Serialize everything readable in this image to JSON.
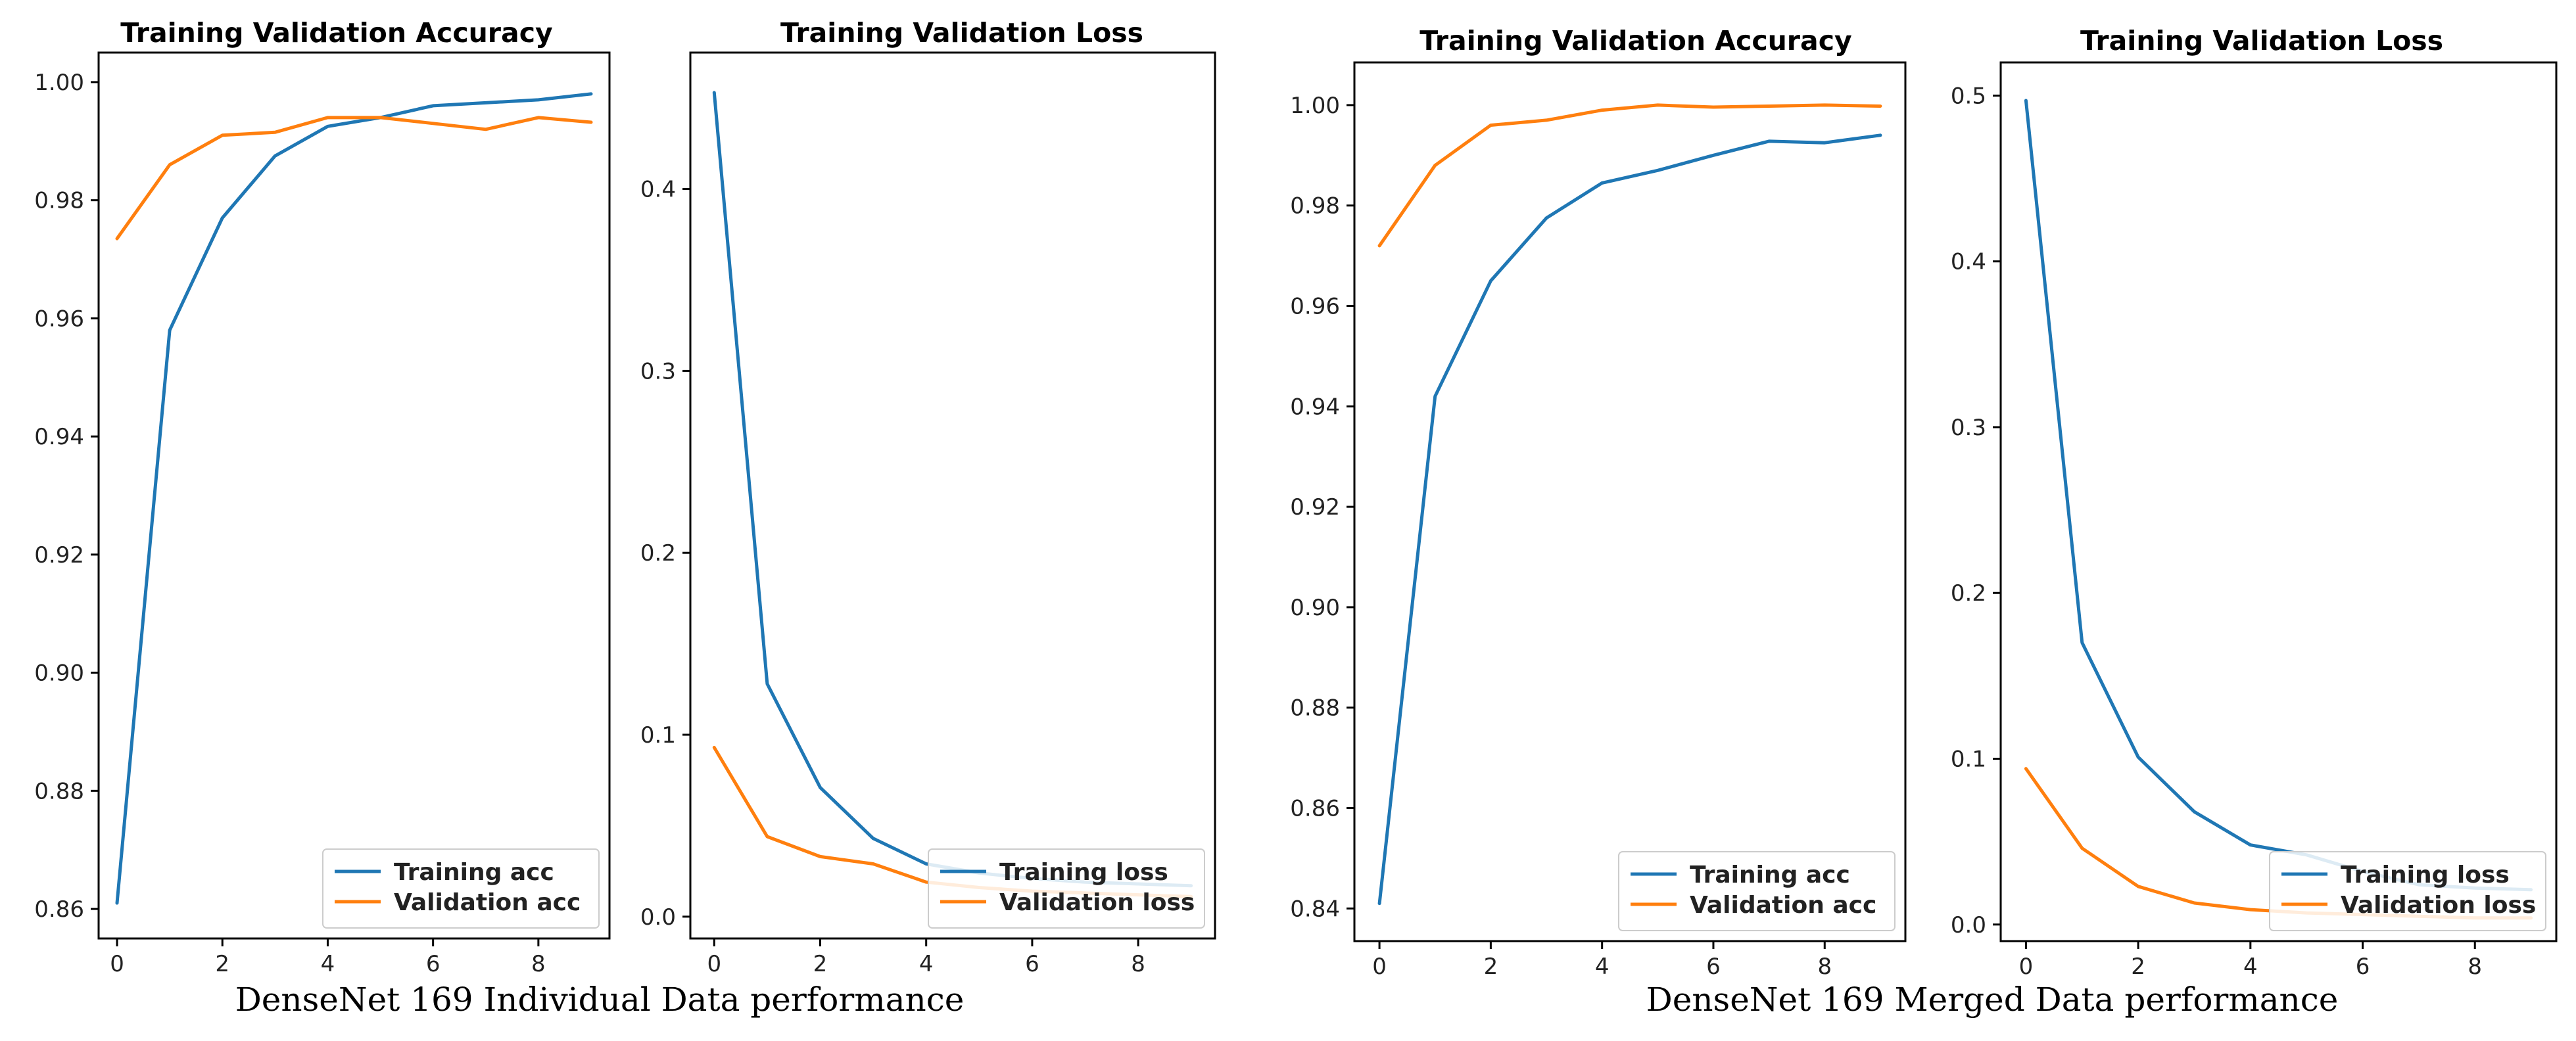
{
  "chart_data": [
    {
      "type": "line",
      "title": "Training Validation Accuracy",
      "x": [
        0,
        1,
        2,
        3,
        4,
        5,
        6,
        7,
        8,
        9
      ],
      "xticks": [
        "0",
        "2",
        "4",
        "6",
        "8"
      ],
      "xlim": [
        -0.35,
        9.35
      ],
      "ylim": [
        0.855,
        1.005
      ],
      "yticks": [
        "0.86",
        "0.88",
        "0.90",
        "0.92",
        "0.94",
        "0.96",
        "0.98",
        "1.00"
      ],
      "series": [
        {
          "name": "Training acc",
          "color": "#1f77b4",
          "values": [
            0.861,
            0.958,
            0.977,
            0.9875,
            0.9925,
            0.994,
            0.996,
            0.9965,
            0.997,
            0.998
          ]
        },
        {
          "name": "Validation acc",
          "color": "#ff7f0e",
          "values": [
            0.9735,
            0.986,
            0.991,
            0.9915,
            0.994,
            0.994,
            0.993,
            0.992,
            0.994,
            0.9932
          ]
        }
      ],
      "legend": "lower-right"
    },
    {
      "type": "line",
      "title": "Training Validation Loss",
      "x": [
        0,
        1,
        2,
        3,
        4,
        5,
        6,
        7,
        8,
        9
      ],
      "xticks": [
        "0",
        "2",
        "4",
        "6",
        "8"
      ],
      "xlim": [
        -0.45,
        9.45
      ],
      "ylim": [
        -0.012,
        0.475
      ],
      "yticks": [
        "0.0",
        "0.1",
        "0.2",
        "0.3",
        "0.4"
      ],
      "series": [
        {
          "name": "Training loss",
          "color": "#1f77b4",
          "values": [
            0.453,
            0.128,
            0.071,
            0.043,
            0.029,
            0.024,
            0.021,
            0.019,
            0.018,
            0.017
          ]
        },
        {
          "name": "Validation loss",
          "color": "#ff7f0e",
          "values": [
            0.093,
            0.044,
            0.033,
            0.029,
            0.019,
            0.016,
            0.014,
            0.013,
            0.012,
            0.011
          ]
        }
      ],
      "legend": "lower-right"
    },
    {
      "type": "line",
      "title": "Training Validation Accuracy",
      "x": [
        0,
        1,
        2,
        3,
        4,
        5,
        6,
        7,
        8,
        9
      ],
      "xticks": [
        "0",
        "2",
        "4",
        "6",
        "8"
      ],
      "xlim": [
        -0.45,
        9.45
      ],
      "ylim": [
        0.8335,
        1.0085
      ],
      "yticks": [
        "0.84",
        "0.86",
        "0.88",
        "0.90",
        "0.92",
        "0.94",
        "0.96",
        "0.98",
        "1.00"
      ],
      "series": [
        {
          "name": "Training acc",
          "color": "#1f77b4",
          "values": [
            0.841,
            0.942,
            0.965,
            0.9775,
            0.9845,
            0.987,
            0.99,
            0.9928,
            0.9925,
            0.994
          ]
        },
        {
          "name": "Validation acc",
          "color": "#ff7f0e",
          "values": [
            0.972,
            0.988,
            0.996,
            0.997,
            0.999,
            1.0,
            0.9996,
            0.9998,
            1.0,
            0.9998
          ]
        }
      ],
      "legend": "lower-right"
    },
    {
      "type": "line",
      "title": "Training Validation Loss",
      "x": [
        0,
        1,
        2,
        3,
        4,
        5,
        6,
        7,
        8,
        9
      ],
      "xticks": [
        "0",
        "2",
        "4",
        "6",
        "8"
      ],
      "xlim": [
        -0.45,
        9.45
      ],
      "ylim": [
        -0.01,
        0.52
      ],
      "yticks": [
        "0.0",
        "0.1",
        "0.2",
        "0.3",
        "0.4",
        "0.5"
      ],
      "series": [
        {
          "name": "Training loss",
          "color": "#1f77b4",
          "values": [
            0.497,
            0.17,
            0.101,
            0.068,
            0.048,
            0.042,
            0.032,
            0.024,
            0.022,
            0.021
          ]
        },
        {
          "name": "Validation loss",
          "color": "#ff7f0e",
          "values": [
            0.094,
            0.046,
            0.023,
            0.013,
            0.009,
            0.007,
            0.006,
            0.005,
            0.004,
            0.004
          ]
        }
      ],
      "legend": "lower-right"
    }
  ],
  "captions": {
    "left": "DenseNet 169 Individual Data performance",
    "right": "DenseNet 169 Merged Data performance"
  }
}
